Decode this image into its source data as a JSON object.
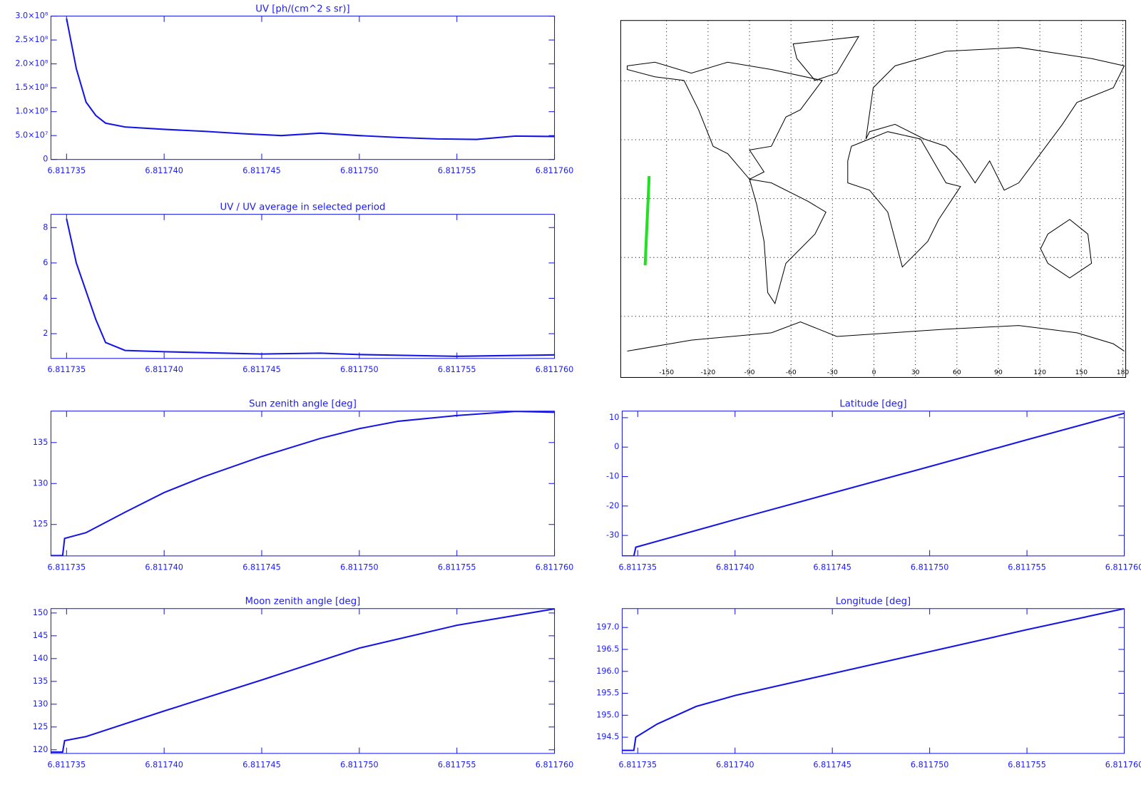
{
  "chart_data": [
    {
      "type": "line",
      "title": "UV [ph/(cm^2 s sr)]",
      "color": "#1414e6",
      "x": [
        6.811735,
        6.8117355,
        6.811736,
        6.8117365,
        6.811737,
        6.811738,
        6.81174,
        6.811742,
        6.811744,
        6.811746,
        6.811748,
        6.81175,
        6.811752,
        6.811754,
        6.811756,
        6.811758,
        6.81176
      ],
      "values": [
        295000000,
        190000000,
        120000000,
        92000000,
        76000000,
        68000000,
        63000000,
        59000000,
        54000000,
        50000000,
        55000000,
        50000000,
        46000000,
        43000000,
        42000000,
        49000000,
        48000000
      ],
      "xlim": [
        6.8117342,
        6.81176
      ],
      "xticks": [
        6.811735,
        {
          "value": 6.81174,
          "label": "6.811740"
        },
        6.811745,
        {
          "value": 6.81175,
          "label": "6.811750"
        },
        6.811755,
        {
          "value": 6.81176,
          "label": "6.811760"
        }
      ],
      "ylim": [
        0,
        300000000
      ],
      "yticks": [
        0,
        {
          "value": 50000000,
          "label": "5.0×10⁷"
        },
        {
          "value": 100000000,
          "label": "1.0×10⁸"
        },
        {
          "value": 150000000,
          "label": "1.5×10⁸"
        },
        {
          "value": 200000000,
          "label": "2.0×10⁸"
        },
        {
          "value": 250000000,
          "label": "2.5×10⁸"
        },
        {
          "value": 300000000,
          "label": "3.0×10⁸"
        }
      ]
    },
    {
      "type": "line",
      "title": "UV / UV average in selected period",
      "color": "#1414e6",
      "x": [
        6.811735,
        6.8117355,
        6.811736,
        6.8117365,
        6.811737,
        6.811738,
        6.81174,
        6.811745,
        6.811748,
        6.81175,
        6.811755,
        6.81176
      ],
      "values": [
        8.5,
        6.0,
        4.4,
        2.8,
        1.5,
        1.05,
        0.98,
        0.85,
        0.9,
        0.82,
        0.72,
        0.8
      ],
      "xlim": [
        6.8117342,
        6.81176
      ],
      "xticks": [
        6.811735,
        {
          "value": 6.81174,
          "label": "6.811740"
        },
        6.811745,
        {
          "value": 6.81175,
          "label": "6.811750"
        },
        6.811755,
        {
          "value": 6.81176,
          "label": "6.811760"
        }
      ],
      "ylim": [
        0.6,
        8.75
      ],
      "yticks": [
        2,
        4,
        6,
        8
      ]
    },
    {
      "type": "map",
      "grid": true,
      "series": [
        {
          "color": "#22e022",
          "x": [
            -165.5,
            -164.8,
            -164.1,
            -163.3,
            -162.6
          ],
          "values": [
            -34,
            -23,
            -12,
            0,
            11.5
          ]
        }
      ],
      "xlim": [
        -180,
        180
      ],
      "xticks": [
        -150,
        -120,
        -90,
        -60,
        -30,
        0,
        30,
        60,
        90,
        120,
        150,
        180
      ],
      "ylim": [
        -90,
        90
      ],
      "yticks": [
        -60,
        -30,
        0,
        30,
        60
      ]
    },
    {
      "type": "line",
      "title": "Sun zenith angle [deg]",
      "color": "#1414e6",
      "x": [
        6.8117342,
        6.8117348,
        6.8117349,
        6.811736,
        6.811738,
        6.81174,
        6.811742,
        6.811745,
        6.811748,
        6.81175,
        6.811752,
        6.811755,
        6.811758,
        6.81176
      ],
      "values": [
        121.2,
        121.2,
        123.3,
        124.0,
        126.5,
        128.9,
        130.8,
        133.3,
        135.5,
        136.7,
        137.6,
        138.3,
        138.8,
        138.7
      ],
      "xlim": [
        6.8117342,
        6.81176
      ],
      "xticks": [
        6.811735,
        {
          "value": 6.81174,
          "label": "6.811740"
        },
        6.811745,
        {
          "value": 6.81175,
          "label": "6.811750"
        },
        6.811755,
        {
          "value": 6.81176,
          "label": "6.811760"
        }
      ],
      "ylim": [
        121.16,
        138.84
      ],
      "yticks": [
        125,
        130,
        135
      ]
    },
    {
      "type": "line",
      "title": "Latitude [deg]",
      "color": "#1414e6",
      "x": [
        6.8117342,
        6.8117348,
        6.8117349,
        6.81174,
        6.811745,
        6.81175,
        6.811755,
        6.81176
      ],
      "values": [
        -37,
        -37,
        -34,
        -24.6,
        -15.6,
        -6.6,
        2.5,
        11.5
      ],
      "xlim": [
        6.8117342,
        6.81176
      ],
      "xticks": [
        6.811735,
        {
          "value": 6.81174,
          "label": "6.811740"
        },
        6.811745,
        {
          "value": 6.81175,
          "label": "6.811750"
        },
        6.811755,
        {
          "value": 6.81176,
          "label": "6.811760"
        }
      ],
      "ylim": [
        -36.96,
        12.24
      ],
      "yticks": [
        -30,
        -20,
        -10,
        0,
        10
      ]
    },
    {
      "type": "line",
      "title": "Moon zenith angle [deg]",
      "color": "#1414e6",
      "x": [
        6.8117342,
        6.8117348,
        6.8117349,
        6.811736,
        6.81174,
        6.811745,
        6.81175,
        6.811755,
        6.81176
      ],
      "values": [
        119.5,
        119.5,
        122,
        122.9,
        128.5,
        135.3,
        142.3,
        147.3,
        150.9
      ],
      "xlim": [
        6.8117342,
        6.81176
      ],
      "xticks": [
        6.811735,
        {
          "value": 6.81174,
          "label": "6.811740"
        },
        6.811745,
        {
          "value": 6.81175,
          "label": "6.811750"
        },
        6.811755,
        {
          "value": 6.81176,
          "label": "6.811760"
        }
      ],
      "ylim": [
        119.2,
        150.96
      ],
      "yticks": [
        120,
        125,
        130,
        135,
        140,
        145,
        150
      ]
    },
    {
      "type": "line",
      "title": "Longitude [deg]",
      "color": "#1414e6",
      "x": [
        6.8117342,
        6.8117348,
        6.8117349,
        6.811736,
        6.811738,
        6.81174,
        6.811745,
        6.81175,
        6.811755,
        6.81176
      ],
      "values": [
        194.2,
        194.2,
        194.5,
        194.8,
        195.2,
        195.45,
        195.95,
        196.45,
        196.95,
        197.43
      ],
      "xlim": [
        6.8117342,
        6.81176
      ],
      "xticks": [
        6.811735,
        {
          "value": 6.81174,
          "label": "6.811740"
        },
        6.811745,
        {
          "value": 6.81175,
          "label": "6.811750"
        },
        6.811755,
        {
          "value": 6.81176,
          "label": "6.811760"
        }
      ],
      "ylim": [
        194.13,
        197.43
      ],
      "yticks": [
        {
          "value": 194.5,
          "label": "194.5"
        },
        {
          "value": 195,
          "label": "195.0"
        },
        195.5,
        {
          "value": 196,
          "label": "196.0"
        },
        196.5,
        {
          "value": 197,
          "label": "197.0"
        }
      ]
    }
  ]
}
